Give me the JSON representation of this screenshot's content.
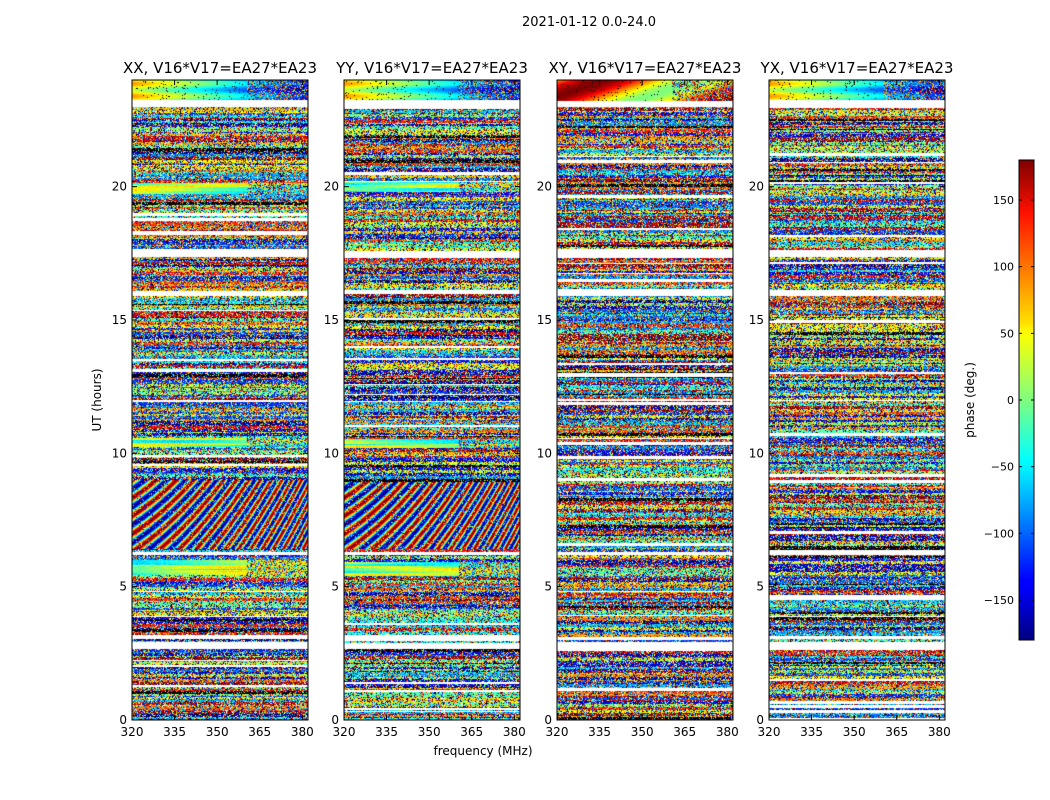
{
  "chart_data": {
    "type": "heatmap",
    "suptitle": "2021-01-12 0.0-24.0",
    "xlabel": "frequency (MHz)",
    "ylabel": "UT (hours)",
    "xlim": [
      320,
      382
    ],
    "ylim": [
      0,
      24
    ],
    "xticks": [
      "320",
      "335",
      "350",
      "365",
      "380"
    ],
    "yticks": [
      "0",
      "5",
      "10",
      "15",
      "20"
    ],
    "panels": [
      {
        "title": "XX, V16*V17=EA27*EA23",
        "polarization": "XX"
      },
      {
        "title": "YY, V16*V17=EA27*EA23",
        "polarization": "YY"
      },
      {
        "title": "XY, V16*V17=EA27*EA23",
        "polarization": "XY"
      },
      {
        "title": "YX, V16*V17=EA27*EA23",
        "polarization": "YX"
      }
    ],
    "colorbar": {
      "label": "phase (deg.)",
      "range": [
        -180,
        180
      ],
      "ticks": [
        "150",
        "100",
        "50",
        "0",
        "−50",
        "−100",
        "−150"
      ],
      "colormap": "jet"
    }
  }
}
